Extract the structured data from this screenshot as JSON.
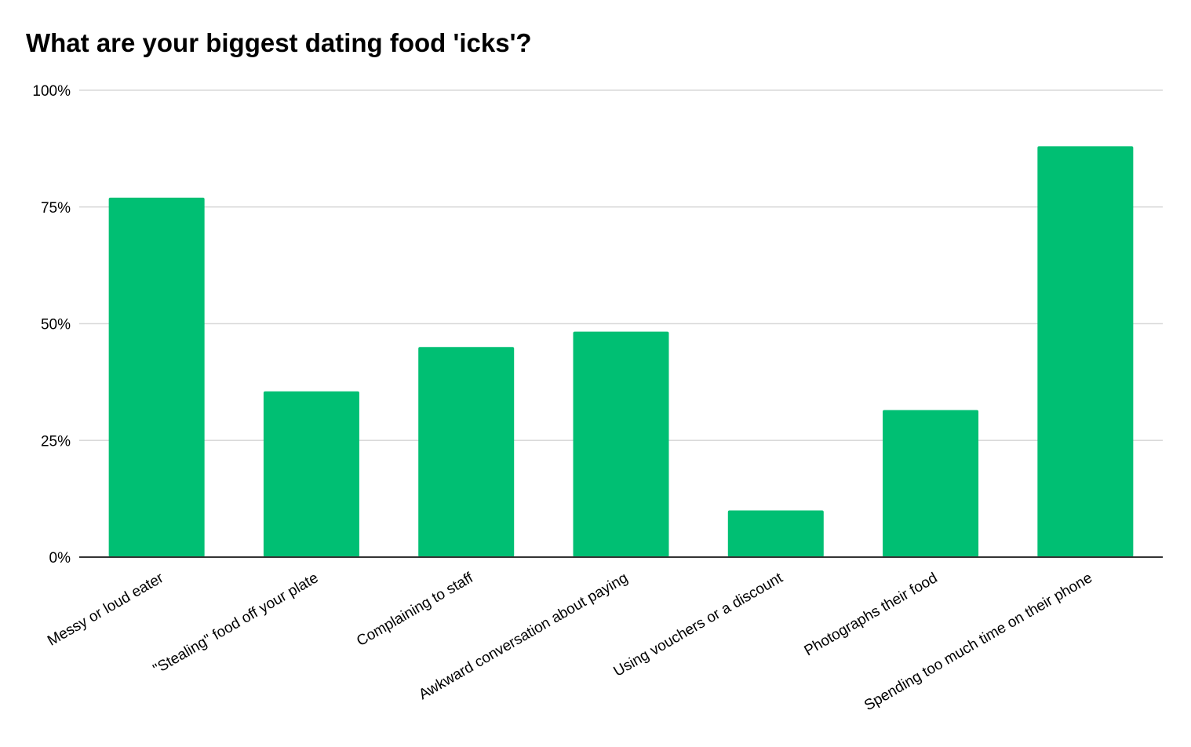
{
  "chart_data": {
    "type": "bar",
    "title": "What are your biggest dating food 'icks'?",
    "xlabel": "",
    "ylabel": "",
    "categories": [
      "Messy or loud eater",
      "\"Stealing\" food off your plate",
      "Complaining to staff",
      "Awkward conversation about paying",
      "Using vouchers or a discount",
      "Photographs their food",
      "Spending too much time on their phone"
    ],
    "values": [
      77,
      35.5,
      45,
      48.3,
      10,
      31.5,
      88
    ],
    "ylim": [
      0,
      100
    ],
    "yticks": [
      0,
      25,
      50,
      75,
      100
    ],
    "ytick_labels": [
      "0%",
      "25%",
      "50%",
      "75%",
      "100%"
    ],
    "grid": true,
    "legend": "none",
    "bar_color": "#00bf73",
    "grid_color": "#d9d9d9",
    "axis_color": "#333333"
  }
}
